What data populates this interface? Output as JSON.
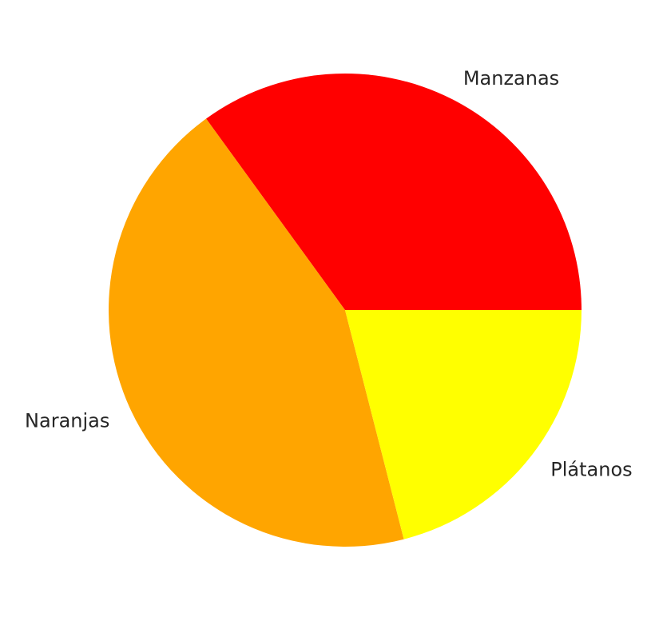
{
  "chart_data": {
    "type": "pie",
    "title": "",
    "slices": [
      {
        "label": "Manzanas",
        "value": 35,
        "color": "#ff0000"
      },
      {
        "label": "Naranjas",
        "value": 44,
        "color": "#ffa500"
      },
      {
        "label": "Plátanos",
        "value": 21,
        "color": "#ffff00"
      }
    ],
    "start_angle_deg": 0,
    "direction": "counterclockwise",
    "legend": "none"
  }
}
